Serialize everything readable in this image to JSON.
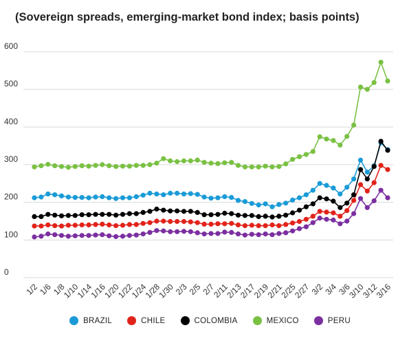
{
  "chart_data": {
    "type": "line",
    "title": "(Sovereign spreads, emerging-market bond index; basis points)",
    "xlabel": "",
    "ylabel": "",
    "ylim": [
      0,
      600
    ],
    "yticks": [
      0,
      100,
      200,
      300,
      400,
      500,
      600
    ],
    "grid": true,
    "legend_position": "bottom",
    "x_tick_labels": [
      "1/2",
      "1/6",
      "1/8",
      "1/10",
      "1/14",
      "1/16",
      "1/20",
      "1/22",
      "1/24",
      "1/28",
      "1/30",
      "2/3",
      "2/5",
      "2/7",
      "2/11",
      "2/13",
      "2/17",
      "2/19",
      "2/21",
      "2/25",
      "2/27",
      "3/2",
      "3/4",
      "3/6",
      "3/10",
      "3/12",
      "3/16"
    ],
    "x": [
      "1/2",
      "1/3",
      "1/6",
      "1/7",
      "1/8",
      "1/9",
      "1/10",
      "1/13",
      "1/14",
      "1/15",
      "1/16",
      "1/17",
      "1/20",
      "1/21",
      "1/22",
      "1/23",
      "1/24",
      "1/27",
      "1/28",
      "1/29",
      "1/30",
      "1/31",
      "2/3",
      "2/4",
      "2/5",
      "2/6",
      "2/7",
      "2/10",
      "2/11",
      "2/12",
      "2/13",
      "2/14",
      "2/17",
      "2/18",
      "2/19",
      "2/20",
      "2/21",
      "2/24",
      "2/25",
      "2/26",
      "2/27",
      "2/28",
      "3/2",
      "3/3",
      "3/4",
      "3/5",
      "3/6",
      "3/9",
      "3/10",
      "3/11",
      "3/12",
      "3/13",
      "3/16"
    ],
    "series": [
      {
        "name": "BRAZIL",
        "color": "#1a9bd7",
        "values": [
          212,
          214,
          222,
          220,
          217,
          214,
          213,
          213,
          212,
          214,
          215,
          212,
          210,
          212,
          212,
          215,
          219,
          224,
          222,
          220,
          224,
          224,
          222,
          223,
          221,
          214,
          211,
          212,
          215,
          213,
          205,
          202,
          197,
          193,
          196,
          188,
          194,
          198,
          206,
          212,
          220,
          232,
          250,
          245,
          238,
          222,
          240,
          262,
          312,
          280,
          297,
          358,
          340
        ]
      },
      {
        "name": "CHILE",
        "color": "#e2231a",
        "values": [
          137,
          137,
          140,
          138,
          137,
          139,
          139,
          140,
          140,
          141,
          142,
          140,
          138,
          139,
          141,
          141,
          144,
          146,
          150,
          150,
          149,
          149,
          149,
          148,
          146,
          142,
          142,
          143,
          143,
          144,
          140,
          138,
          139,
          138,
          138,
          140,
          138,
          141,
          145,
          149,
          155,
          163,
          176,
          174,
          172,
          163,
          178,
          205,
          247,
          230,
          252,
          298,
          287
        ]
      },
      {
        "name": "COLOMBIA",
        "color": "#000000",
        "values": [
          162,
          162,
          168,
          166,
          164,
          165,
          165,
          167,
          167,
          168,
          168,
          168,
          166,
          168,
          170,
          170,
          173,
          176,
          182,
          179,
          177,
          177,
          176,
          176,
          173,
          167,
          167,
          168,
          171,
          170,
          166,
          165,
          165,
          162,
          163,
          161,
          163,
          166,
          172,
          179,
          188,
          196,
          212,
          209,
          203,
          186,
          198,
          220,
          287,
          262,
          295,
          362,
          338
        ]
      },
      {
        "name": "MEXICO",
        "color": "#7ac143",
        "values": [
          294,
          297,
          301,
          297,
          295,
          293,
          295,
          297,
          296,
          298,
          300,
          297,
          295,
          296,
          296,
          298,
          298,
          300,
          304,
          316,
          310,
          308,
          310,
          310,
          312,
          306,
          304,
          303,
          305,
          306,
          298,
          294,
          294,
          294,
          296,
          294,
          295,
          302,
          314,
          321,
          327,
          335,
          374,
          368,
          364,
          352,
          375,
          405,
          506,
          500,
          518,
          572,
          522
        ]
      },
      {
        "name": "PERU",
        "color": "#7b2fa0",
        "values": [
          108,
          110,
          116,
          114,
          112,
          110,
          111,
          112,
          112,
          113,
          114,
          111,
          109,
          110,
          112,
          113,
          116,
          120,
          125,
          124,
          122,
          122,
          123,
          122,
          119,
          116,
          117,
          117,
          121,
          120,
          116,
          113,
          115,
          114,
          116,
          114,
          117,
          119,
          124,
          130,
          135,
          146,
          158,
          155,
          153,
          143,
          150,
          170,
          210,
          186,
          204,
          232,
          212
        ]
      }
    ]
  }
}
